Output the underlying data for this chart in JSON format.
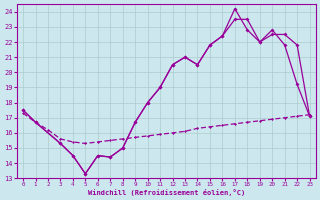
{
  "xlabel": "Windchill (Refroidissement éolien,°C)",
  "bg_color": "#cce8ee",
  "grid_color": "#aacccc",
  "line_color": "#990099",
  "xlim": [
    -0.5,
    23.5
  ],
  "ylim": [
    13,
    24.5
  ],
  "xticks": [
    0,
    1,
    2,
    3,
    4,
    5,
    6,
    7,
    8,
    9,
    10,
    11,
    12,
    13,
    14,
    15,
    16,
    17,
    18,
    19,
    20,
    21,
    22,
    23
  ],
  "yticks": [
    13,
    14,
    15,
    16,
    17,
    18,
    19,
    20,
    21,
    22,
    23,
    24
  ],
  "line1_x": [
    0,
    1,
    3,
    4,
    5,
    6,
    7,
    8,
    9,
    10,
    11,
    12,
    13,
    14,
    15,
    16,
    17,
    18,
    19,
    20,
    21,
    22,
    23
  ],
  "line1_y": [
    17.5,
    16.7,
    15.3,
    14.5,
    13.3,
    14.5,
    14.4,
    15.0,
    16.7,
    18.0,
    19.0,
    20.5,
    21.0,
    20.5,
    21.8,
    22.4,
    24.2,
    22.8,
    22.0,
    22.8,
    21.8,
    19.2,
    17.1
  ],
  "line2_x": [
    0,
    1,
    3,
    4,
    5,
    6,
    7,
    8,
    9,
    10,
    11,
    12,
    13,
    14,
    15,
    16,
    17,
    18,
    19,
    20,
    21,
    22,
    23
  ],
  "line2_y": [
    17.5,
    16.7,
    15.3,
    14.5,
    13.3,
    14.5,
    14.4,
    15.0,
    16.7,
    18.0,
    19.0,
    20.5,
    21.0,
    20.5,
    21.8,
    22.4,
    23.5,
    23.5,
    22.0,
    22.5,
    22.5,
    21.8,
    17.1
  ],
  "line3_x": [
    0,
    1,
    2,
    3,
    4,
    5,
    6,
    7,
    8,
    9,
    10,
    11,
    12,
    13,
    14,
    15,
    16,
    17,
    18,
    19,
    20,
    21,
    22,
    23
  ],
  "line3_y": [
    17.3,
    16.7,
    16.2,
    15.6,
    15.4,
    15.3,
    15.4,
    15.5,
    15.6,
    15.7,
    15.8,
    15.9,
    16.0,
    16.1,
    16.3,
    16.4,
    16.5,
    16.6,
    16.7,
    16.8,
    16.9,
    17.0,
    17.1,
    17.2
  ]
}
